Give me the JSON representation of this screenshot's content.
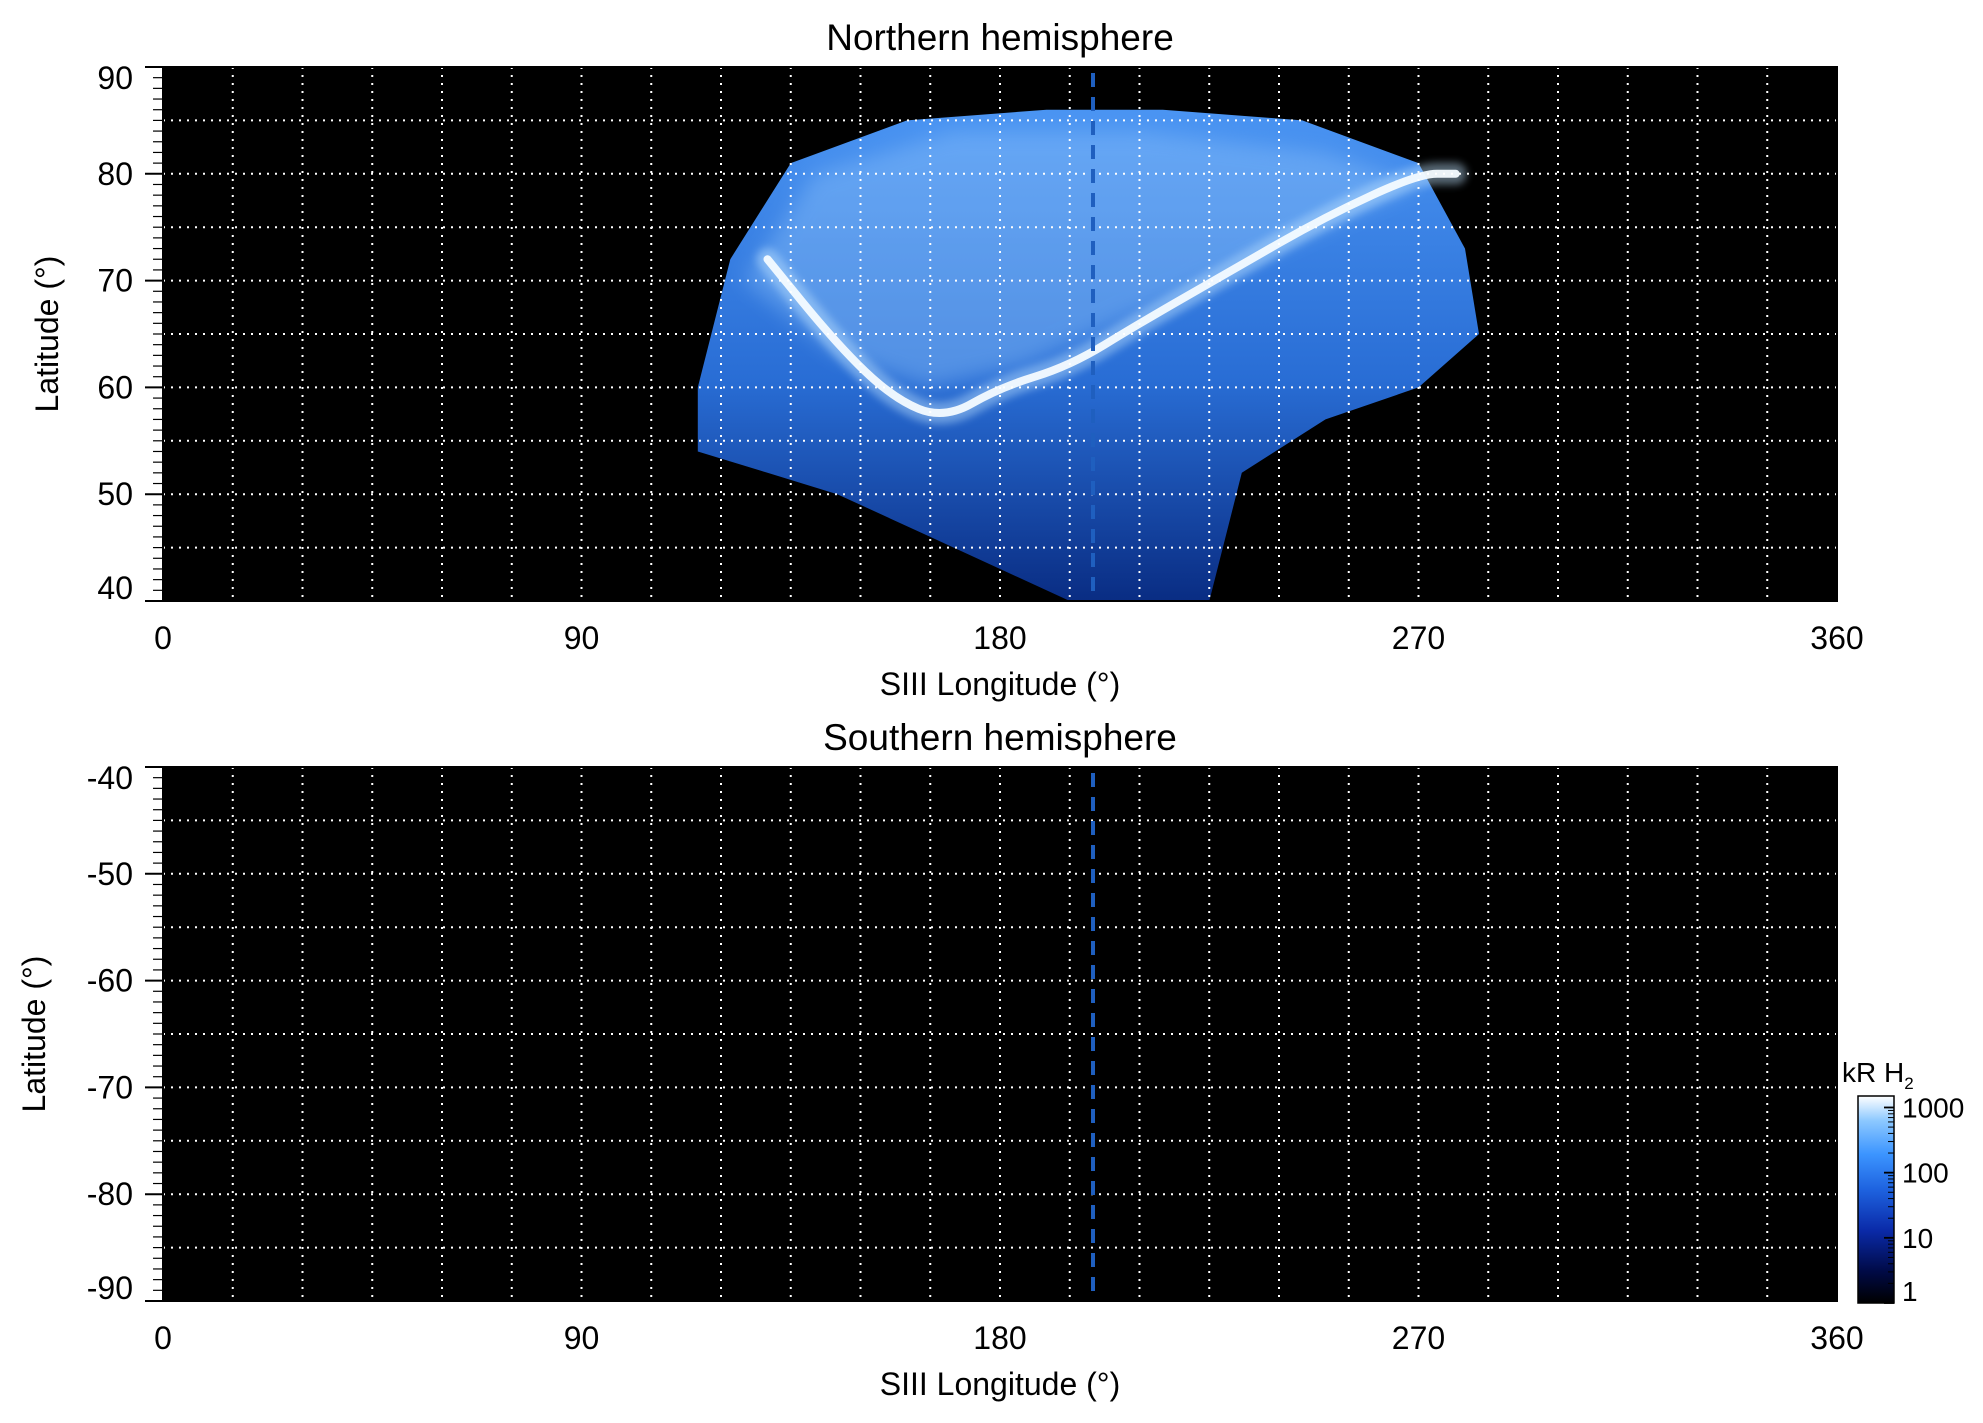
{
  "chart_data": [
    {
      "type": "heatmap",
      "title": "Northern hemisphere",
      "xlabel": "SIII Longitude (°)",
      "ylabel": "Latitude (°)",
      "xlim": [
        0,
        360
      ],
      "ylim": [
        40,
        90
      ],
      "xticks": [
        0,
        90,
        180,
        270,
        360
      ],
      "yticks": [
        90,
        80,
        70,
        60,
        50,
        40
      ],
      "grid": true,
      "grid_style": "dotted",
      "grid_x_spacing": 15,
      "grid_y_spacing": 5,
      "background": "#000000",
      "marker_longitude": 200,
      "marker_style": "dashed",
      "marker_color": "#1f5fbf",
      "auroral_oval": [
        {
          "lon": 130,
          "lat": 72
        },
        {
          "lon": 145,
          "lat": 64
        },
        {
          "lon": 157,
          "lat": 59
        },
        {
          "lon": 168,
          "lat": 57
        },
        {
          "lon": 180,
          "lat": 60
        },
        {
          "lon": 195,
          "lat": 62
        },
        {
          "lon": 210,
          "lat": 66
        },
        {
          "lon": 230,
          "lat": 71
        },
        {
          "lon": 250,
          "lat": 76
        },
        {
          "lon": 270,
          "lat": 80
        },
        {
          "lon": 278,
          "lat": 80
        }
      ],
      "emission_region": {
        "upper_edge": [
          [
            115,
            60
          ],
          [
            122,
            72
          ],
          [
            135,
            81
          ],
          [
            160,
            85
          ],
          [
            190,
            86
          ],
          [
            215,
            86
          ],
          [
            245,
            85
          ],
          [
            270,
            81
          ],
          [
            280,
            73
          ],
          [
            283,
            65
          ]
        ],
        "lower_edge": [
          [
            283,
            65
          ],
          [
            270,
            60
          ],
          [
            250,
            57
          ],
          [
            232,
            52
          ],
          [
            225,
            40
          ],
          [
            195,
            40
          ],
          [
            165,
            46
          ],
          [
            145,
            50
          ],
          [
            130,
            52
          ],
          [
            115,
            54
          ]
        ]
      }
    },
    {
      "type": "heatmap",
      "title": "Southern hemisphere",
      "xlabel": "SIII Longitude (°)",
      "ylabel": "Latitude (°)",
      "xlim": [
        0,
        360
      ],
      "ylim": [
        -90,
        -40
      ],
      "xticks": [
        0,
        90,
        180,
        270,
        360
      ],
      "yticks": [
        -40,
        -50,
        -60,
        -70,
        -80,
        -90
      ],
      "grid": true,
      "grid_style": "dotted",
      "grid_x_spacing": 15,
      "grid_y_spacing": 5,
      "background": "#000000",
      "marker_longitude": 200,
      "marker_style": "dashed",
      "marker_color": "#1f5fbf"
    }
  ],
  "colorbar": {
    "label_main": "kR H",
    "label_sub": "2",
    "scale": "log",
    "ticks": [
      "1000",
      "100",
      "10",
      "1"
    ],
    "tick_values": [
      1000,
      100,
      10,
      1
    ],
    "range": [
      1,
      1500
    ],
    "colors": [
      "#000000",
      "#000a45",
      "#0a2aa8",
      "#1e63e0",
      "#3c95ff",
      "#8cc8ff",
      "#ffffff"
    ],
    "placement": "bottom-right"
  }
}
